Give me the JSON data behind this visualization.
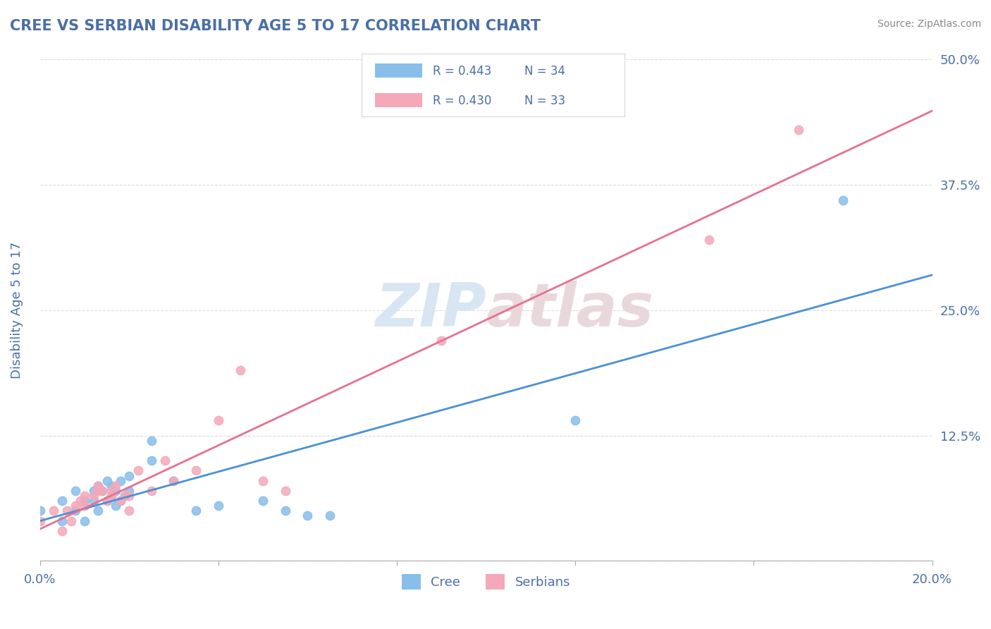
{
  "title": "CREE VS SERBIAN DISABILITY AGE 5 TO 17 CORRELATION CHART",
  "source": "Source: ZipAtlas.com",
  "ylabel": "Disability Age 5 to 17",
  "xlim": [
    0.0,
    0.2
  ],
  "ylim": [
    0.0,
    0.5
  ],
  "xticks": [
    0.0,
    0.04,
    0.08,
    0.12,
    0.16,
    0.2
  ],
  "xtick_labels": [
    "0.0%",
    "",
    "",
    "",
    "",
    "20.0%"
  ],
  "yticks": [
    0.0,
    0.125,
    0.25,
    0.375,
    0.5
  ],
  "ytick_labels": [
    "",
    "12.5%",
    "25.0%",
    "37.5%",
    "50.0%"
  ],
  "cree_color": "#87BEEA",
  "serbian_color": "#F4A8B8",
  "cree_line_color": "#4A90D9",
  "serbian_line_color": "#E87090",
  "cree_R": 0.443,
  "cree_N": 34,
  "serbian_R": 0.43,
  "serbian_N": 33,
  "legend_label_cree": "Cree",
  "legend_label_serbian": "Serbians",
  "title_color": "#4A6FA5",
  "axis_label_color": "#4A6FA5",
  "tick_color": "#4A6FA5",
  "watermark_zip": "ZIP",
  "watermark_atlas": "atlas",
  "background_color": "#FFFFFF",
  "cree_x": [
    0.0,
    0.005,
    0.005,
    0.008,
    0.008,
    0.01,
    0.01,
    0.012,
    0.012,
    0.013,
    0.013,
    0.014,
    0.015,
    0.015,
    0.016,
    0.016,
    0.017,
    0.017,
    0.018,
    0.018,
    0.019,
    0.02,
    0.02,
    0.025,
    0.025,
    0.03,
    0.035,
    0.04,
    0.05,
    0.055,
    0.06,
    0.065,
    0.12,
    0.18
  ],
  "cree_y": [
    0.05,
    0.04,
    0.06,
    0.05,
    0.07,
    0.04,
    0.06,
    0.06,
    0.07,
    0.05,
    0.075,
    0.07,
    0.06,
    0.08,
    0.065,
    0.075,
    0.055,
    0.07,
    0.06,
    0.08,
    0.065,
    0.07,
    0.085,
    0.1,
    0.12,
    0.08,
    0.05,
    0.055,
    0.06,
    0.05,
    0.045,
    0.045,
    0.14,
    0.36
  ],
  "serbian_x": [
    0.0,
    0.003,
    0.005,
    0.006,
    0.007,
    0.008,
    0.009,
    0.01,
    0.01,
    0.012,
    0.013,
    0.013,
    0.014,
    0.015,
    0.016,
    0.016,
    0.017,
    0.018,
    0.019,
    0.02,
    0.02,
    0.022,
    0.025,
    0.028,
    0.03,
    0.035,
    0.04,
    0.045,
    0.05,
    0.055,
    0.09,
    0.15,
    0.17
  ],
  "serbian_y": [
    0.04,
    0.05,
    0.03,
    0.05,
    0.04,
    0.055,
    0.06,
    0.055,
    0.065,
    0.065,
    0.07,
    0.075,
    0.07,
    0.06,
    0.065,
    0.07,
    0.075,
    0.06,
    0.065,
    0.05,
    0.065,
    0.09,
    0.07,
    0.1,
    0.08,
    0.09,
    0.14,
    0.19,
    0.08,
    0.07,
    0.22,
    0.32,
    0.43
  ]
}
